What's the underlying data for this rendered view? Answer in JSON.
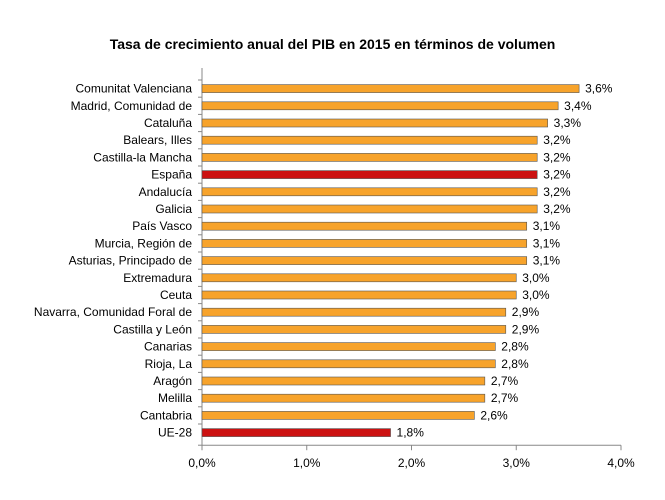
{
  "chart_data": {
    "type": "bar",
    "orientation": "horizontal",
    "title": "Tasa de crecimiento anual del PIB en 2015 en términos de volumen",
    "xlim": [
      0,
      4
    ],
    "x_ticks": [
      "0,0%",
      "1,0%",
      "2,0%",
      "3,0%",
      "4,0%"
    ],
    "grid": false,
    "legend": "none",
    "categories": [
      "Comunitat Valenciana",
      "Madrid, Comunidad de",
      "Cataluña",
      "Balears, Illes",
      "Castilla-la Mancha",
      "España",
      "Andalucía",
      "Galicia",
      "País Vasco",
      "Murcia, Región de",
      "Asturias, Principado de",
      "Extremadura",
      "Ceuta",
      "Navarra, Comunidad Foral de",
      "Castilla y León",
      "Canarias",
      "Rioja, La",
      "Aragón",
      "Melilla",
      "Cantabria",
      "UE-28"
    ],
    "values": [
      3.6,
      3.4,
      3.3,
      3.2,
      3.2,
      3.2,
      3.2,
      3.2,
      3.1,
      3.1,
      3.1,
      3.0,
      3.0,
      2.9,
      2.9,
      2.8,
      2.8,
      2.7,
      2.7,
      2.6,
      1.8
    ],
    "value_labels": [
      "3,6%",
      "3,4%",
      "3,3%",
      "3,2%",
      "3,2%",
      "3,2%",
      "3,2%",
      "3,2%",
      "3,1%",
      "3,1%",
      "3,1%",
      "3,0%",
      "3,0%",
      "2,9%",
      "2,9%",
      "2,8%",
      "2,8%",
      "2,7%",
      "2,7%",
      "2,6%",
      "1,8%"
    ],
    "highlight": [
      "España",
      "UE-28"
    ],
    "colors": {
      "bar": "#f7a32b",
      "highlight": "#cc1111",
      "bar_edge": "#555555",
      "axis": "#888888"
    }
  }
}
